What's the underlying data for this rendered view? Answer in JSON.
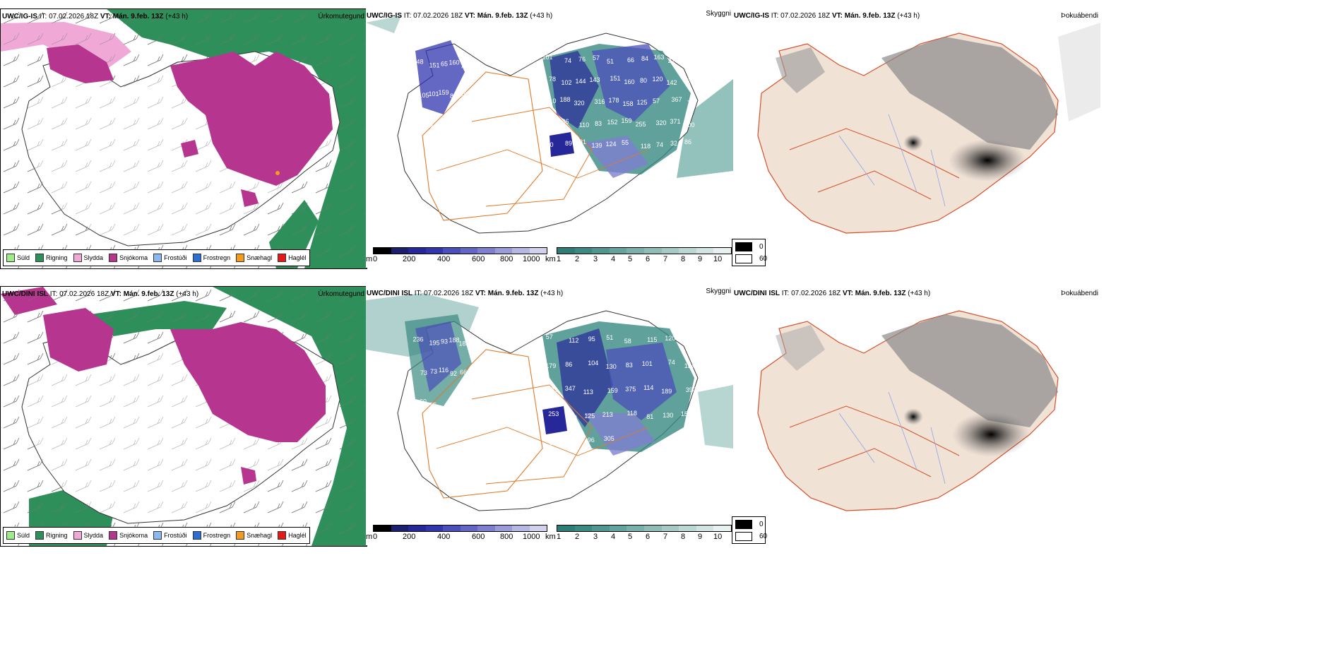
{
  "rows": [
    {
      "model": "UWC/IG-IS",
      "it_label": "IT:",
      "it_value": "07.02.2026 18Z",
      "vt_label": "VT:",
      "vt_value": "Mán. 9.feb. 13Z",
      "lead": "(+43 h)",
      "precip_labels": [
        "148",
        "151",
        "65",
        "160",
        "76",
        "105",
        "101",
        "159",
        "80",
        "105",
        "87",
        "79",
        "101",
        "74",
        "76",
        "57",
        "51",
        "66",
        "84",
        "163",
        "217",
        "101",
        "78",
        "102",
        "144",
        "143",
        "151",
        "160",
        "80",
        "120",
        "142",
        "258",
        "210",
        "188",
        "320",
        "316",
        "178",
        "158",
        "125",
        "57",
        "367",
        "70",
        "116",
        "136",
        "110",
        "83",
        "152",
        "159",
        "255",
        "320",
        "371",
        "300",
        "300",
        "89",
        "81",
        "139",
        "124",
        "55",
        "118",
        "74",
        "32",
        "86",
        "93"
      ]
    },
    {
      "model": "UWC/DINI ISL",
      "it_label": "IT:",
      "it_value": "07.02.2026 18Z",
      "vt_label": "VT:",
      "vt_value": "Mán. 9.feb. 13Z",
      "lead": "(+43 h)",
      "precip_labels": [
        "236",
        "195",
        "93",
        "188",
        "185",
        "73",
        "73",
        "116",
        "92",
        "66",
        "60",
        "55",
        "57",
        "112",
        "95",
        "51",
        "58",
        "115",
        "120",
        "121",
        "179",
        "86",
        "104",
        "130",
        "83",
        "101",
        "74",
        "134",
        "223",
        "347",
        "113",
        "159",
        "375",
        "114",
        "189",
        "390",
        "253",
        "170",
        "125",
        "213",
        "118",
        "81",
        "130",
        "151",
        "125",
        "65",
        "96",
        "305"
      ]
    }
  ],
  "panels": {
    "precip_type_title": "Úrkomutegund",
    "visibility_title": "Skyggni",
    "fog_title": "Þokuábendi"
  },
  "precip_type_legend": [
    {
      "label": "Súld",
      "color": "#9fea8a"
    },
    {
      "label": "Rigning",
      "color": "#2f8f5b"
    },
    {
      "label": "Slydda",
      "color": "#f0a9d6"
    },
    {
      "label": "Snjókoma",
      "color": "#b5358f"
    },
    {
      "label": "Frostúði",
      "color": "#8ab8ef"
    },
    {
      "label": "Frostregn",
      "color": "#2d6ed1"
    },
    {
      "label": "Snæhagl",
      "color": "#f29b1c"
    },
    {
      "label": "Haglél",
      "color": "#e21a1a"
    }
  ],
  "visibility_bars": {
    "m": {
      "unit": "m",
      "ticks": [
        "0",
        "200",
        "400",
        "600",
        "800",
        "1000"
      ],
      "colors": [
        "#000000",
        "#1b1f6e",
        "#26289a",
        "#3136ad",
        "#4a4fb9",
        "#6366c4",
        "#7e80cf",
        "#9a9bd9",
        "#b7b7e4",
        "#d1d1ee"
      ]
    },
    "km": {
      "unit": "km",
      "ticks": [
        "1",
        "2",
        "3",
        "4",
        "5",
        "6",
        "7",
        "8",
        "9",
        "10"
      ],
      "colors": [
        "#2b7d75",
        "#3a8a82",
        "#4d978f",
        "#62a49d",
        "#78b1ab",
        "#8ebdb8",
        "#a5cac6",
        "#bbd7d3",
        "#d2e4e1",
        "#e9f1f0"
      ]
    }
  },
  "fog_legend": [
    {
      "label": "0",
      "color": "#000000"
    },
    {
      "label": "60",
      "color": "#ffffff"
    }
  ]
}
